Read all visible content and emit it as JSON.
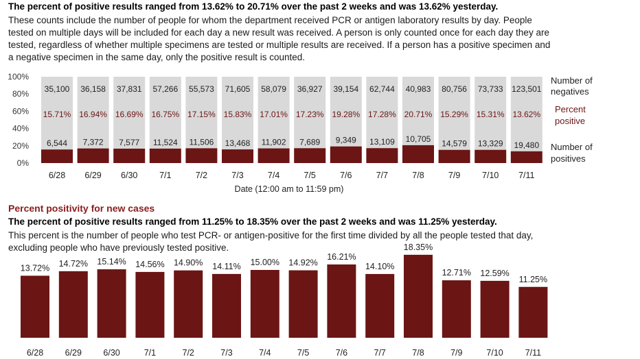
{
  "section1": {
    "headline": "The percent of positive results ranged from 13.62% to 20.71% over the past 2 weeks and was 13.62% yesterday.",
    "description_lines": [
      "These counts include the number of people for whom the department received PCR or antigen laboratory results by day. People",
      "tested on multiple days will be included for each day a new result was received. A person is only counted once for each day they are",
      "tested, regardless of whether multiple specimens are tested or multiple results are received. If a person has a positive specimen and",
      "a negative specimen in the same day, only the positive result is counted."
    ]
  },
  "section2": {
    "title": "Percent positivity for new cases",
    "headline": "The percent of positive results ranged from 11.25% to 18.35% over the past 2 weeks and was 11.25% yesterday.",
    "description_lines": [
      "This percent is the number of people who test PCR- or antigen-positive for the first time divided by all the people tested that day,",
      "excluding people who have previously tested positive."
    ]
  },
  "chart_data": [
    {
      "type": "bar",
      "stacked": true,
      "categories": [
        "6/28",
        "6/29",
        "6/30",
        "7/1",
        "7/2",
        "7/3",
        "7/4",
        "7/5",
        "7/6",
        "7/7",
        "7/8",
        "7/9",
        "7/10",
        "7/11"
      ],
      "ytick_labels": [
        "100%",
        "80%",
        "60%",
        "40%",
        "20%",
        "0%"
      ],
      "ylim": [
        0,
        100
      ],
      "xlabel": "Date (12:00 am to 11:59 pm)",
      "series_labels": {
        "negatives": "Number of negatives",
        "percent": "Percent positive",
        "positives": "Number of positives"
      },
      "negatives_labels": [
        "35,100",
        "36,158",
        "37,831",
        "57,266",
        "55,573",
        "71,605",
        "58,079",
        "36,927",
        "39,154",
        "62,744",
        "40,983",
        "80,756",
        "73,733",
        "123,501"
      ],
      "positives_labels": [
        "6,544",
        "7,372",
        "7,577",
        "11,524",
        "11,506",
        "13,468",
        "11,902",
        "7,689",
        "9,349",
        "13,109",
        "10,705",
        "14,579",
        "13,329",
        "19,480"
      ],
      "percent_positive_labels": [
        "15.71%",
        "16.94%",
        "16.69%",
        "16.75%",
        "17.15%",
        "15.83%",
        "17.01%",
        "17.23%",
        "19.28%",
        "17.28%",
        "20.71%",
        "15.29%",
        "15.31%",
        "13.62%"
      ],
      "percent_positive": [
        15.71,
        16.94,
        16.69,
        16.75,
        17.15,
        15.83,
        17.01,
        17.23,
        19.28,
        17.28,
        20.71,
        15.29,
        15.31,
        13.62
      ],
      "colors": {
        "positive": "#6b1515",
        "negative": "#d9d9d9"
      }
    },
    {
      "type": "bar",
      "categories": [
        "6/28",
        "6/29",
        "6/30",
        "7/1",
        "7/2",
        "7/3",
        "7/4",
        "7/5",
        "7/6",
        "7/7",
        "7/8",
        "7/9",
        "7/10",
        "7/11"
      ],
      "values": [
        13.72,
        14.72,
        15.14,
        14.56,
        14.9,
        14.11,
        15.0,
        14.92,
        16.21,
        14.1,
        18.35,
        12.71,
        12.59,
        11.25
      ],
      "value_labels": [
        "13.72%",
        "14.72%",
        "15.14%",
        "14.56%",
        "14.90%",
        "14.11%",
        "15.00%",
        "14.92%",
        "16.21%",
        "14.10%",
        "18.35%",
        "12.71%",
        "12.59%",
        "11.25%"
      ],
      "ylim": [
        0,
        20
      ],
      "colors": {
        "bar": "#6b1515"
      }
    }
  ]
}
